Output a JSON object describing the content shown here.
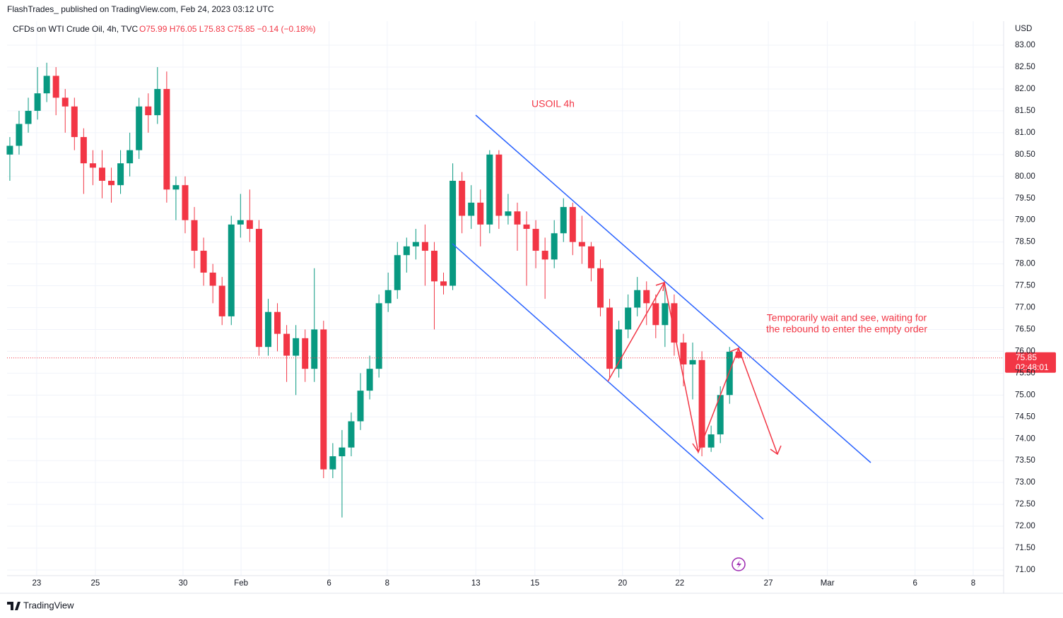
{
  "chart_data": {
    "type": "candlestick",
    "header": "FlashTrades_ published on TradingView.com, Feb 24, 2023 03:12 UTC",
    "symbol": "CFDs on WTI Crude Oil, 4h, TVC",
    "ohlc_legend": "O75.99 H76.05 L75.83 C75.85 −0.14 (−0.18%)",
    "currency": "USD",
    "brand": "TradingView",
    "annotations": [
      "USOIL 4h",
      "Temporarily wait and see, waiting for",
      "the rebound to enter the empty order"
    ],
    "countdown": "02:48:01",
    "up_color": "#089981",
    "down_color": "#f23645",
    "grid": true,
    "last_price_line": true,
    "open": [
      80.5,
      80.7,
      81.2,
      81.5,
      81.9,
      82.3,
      81.8,
      81.6,
      80.9,
      80.3,
      80.2,
      79.9,
      79.8,
      80.3,
      80.6,
      81.6,
      81.4,
      82.0,
      79.7,
      79.8,
      79.0,
      78.3,
      77.8,
      77.5,
      76.8,
      78.9,
      79.0,
      78.8,
      76.1,
      76.9,
      76.4,
      75.9,
      76.3,
      75.6,
      76.5,
      73.3,
      73.6,
      73.8,
      74.4,
      75.1,
      75.6,
      77.1,
      77.4,
      78.2,
      78.4,
      78.5,
      78.3,
      77.6,
      77.5,
      79.9,
      79.1,
      79.4,
      78.9,
      80.5,
      79.1,
      79.2,
      78.9,
      78.8,
      78.3,
      78.1,
      78.7,
      79.3,
      78.5,
      78.4,
      77.9,
      77.0,
      75.6,
      76.5,
      77.0,
      77.4,
      77.1,
      76.6,
      77.1,
      76.2,
      75.7,
      75.8,
      73.8,
      74.1,
      75.0,
      75.99
    ],
    "high": [
      80.9,
      81.5,
      81.8,
      82.5,
      82.6,
      82.5,
      82.0,
      81.8,
      81.1,
      80.6,
      80.6,
      80.2,
      80.6,
      81.0,
      81.8,
      81.9,
      82.5,
      82.4,
      80.0,
      80.0,
      79.3,
      78.6,
      78.0,
      77.7,
      79.1,
      79.6,
      79.7,
      79.0,
      77.2,
      77.1,
      76.6,
      76.6,
      76.5,
      77.9,
      76.7,
      73.9,
      74.2,
      74.6,
      75.5,
      75.9,
      77.3,
      77.8,
      78.5,
      78.6,
      78.8,
      78.9,
      78.5,
      77.8,
      80.3,
      80.1,
      79.8,
      79.7,
      80.6,
      80.6,
      79.6,
      79.4,
      79.2,
      79.0,
      78.6,
      79.0,
      79.5,
      79.4,
      79.1,
      78.5,
      78.1,
      77.2,
      76.7,
      77.3,
      77.7,
      77.6,
      77.3,
      77.5,
      77.3,
      76.4,
      76.2,
      76.0,
      74.3,
      75.2,
      76.1,
      76.05
    ],
    "low": [
      79.9,
      80.5,
      81.0,
      81.3,
      81.7,
      81.4,
      81.0,
      80.6,
      79.6,
      79.8,
      79.5,
      79.4,
      79.6,
      80.0,
      80.4,
      81.0,
      81.2,
      79.4,
      79.0,
      78.7,
      77.9,
      77.5,
      77.1,
      76.6,
      76.6,
      78.6,
      78.5,
      75.9,
      75.9,
      76.0,
      75.3,
      75.0,
      75.3,
      75.3,
      73.1,
      73.1,
      72.2,
      73.6,
      74.2,
      74.9,
      75.4,
      76.9,
      77.2,
      77.8,
      78.1,
      77.5,
      76.5,
      77.3,
      77.4,
      78.7,
      78.8,
      78.4,
      78.7,
      78.8,
      78.9,
      78.3,
      77.5,
      77.9,
      77.2,
      77.9,
      78.5,
      78.2,
      78.0,
      77.6,
      76.8,
      75.4,
      75.4,
      76.3,
      76.8,
      76.6,
      76.3,
      76.1,
      75.9,
      75.2,
      74.9,
      73.6,
      73.7,
      73.9,
      74.8,
      75.83
    ],
    "close": [
      80.7,
      81.2,
      81.5,
      81.9,
      82.3,
      81.8,
      81.6,
      80.9,
      80.3,
      80.2,
      79.9,
      79.8,
      80.3,
      80.6,
      81.6,
      81.4,
      82.0,
      79.7,
      79.8,
      79.0,
      78.3,
      77.8,
      77.5,
      76.8,
      78.9,
      79.0,
      78.8,
      76.1,
      76.9,
      76.4,
      75.9,
      76.3,
      75.6,
      76.5,
      73.3,
      73.6,
      73.8,
      74.4,
      75.1,
      75.6,
      77.1,
      77.4,
      78.2,
      78.4,
      78.5,
      78.3,
      77.6,
      77.5,
      79.9,
      79.1,
      79.4,
      78.9,
      80.5,
      79.1,
      79.2,
      78.9,
      78.8,
      78.3,
      78.1,
      78.7,
      79.3,
      78.5,
      78.4,
      77.9,
      77.0,
      75.6,
      76.5,
      77.0,
      77.4,
      77.1,
      76.6,
      77.1,
      76.2,
      75.7,
      75.8,
      73.8,
      74.1,
      75.0,
      75.99,
      75.85
    ],
    "xlim": [
      -0.3,
      107.7
    ],
    "ylim": [
      70.87,
      83.55
    ],
    "xticks": [
      {
        "value": 2.91,
        "label": "23"
      },
      {
        "value": 9.27,
        "label": "25"
      },
      {
        "value": 18.77,
        "label": "30"
      },
      {
        "value": 25.06,
        "label": "Feb"
      },
      {
        "value": 34.6,
        "label": "6"
      },
      {
        "value": 40.9,
        "label": "8"
      },
      {
        "value": 50.5,
        "label": "13"
      },
      {
        "value": 56.9,
        "label": "15"
      },
      {
        "value": 66.4,
        "label": "20"
      },
      {
        "value": 72.6,
        "label": "22"
      },
      {
        "value": 82.2,
        "label": "27"
      },
      {
        "value": 88.6,
        "label": "Mar"
      },
      {
        "value": 98.1,
        "label": "6"
      },
      {
        "value": 104.4,
        "label": "8"
      }
    ],
    "yticks": [
      {
        "value": 71,
        "label": "71.00"
      },
      {
        "value": 71.5,
        "label": "71.50"
      },
      {
        "value": 72,
        "label": "72.00"
      },
      {
        "value": 72.5,
        "label": "72.50"
      },
      {
        "value": 73,
        "label": "73.00"
      },
      {
        "value": 73.5,
        "label": "73.50"
      },
      {
        "value": 74,
        "label": "74.00"
      },
      {
        "value": 74.5,
        "label": "74.50"
      },
      {
        "value": 75,
        "label": "75.00"
      },
      {
        "value": 75.5,
        "label": "75.50"
      },
      {
        "value": 76,
        "label": "76.00"
      },
      {
        "value": 76.5,
        "label": "76.50"
      },
      {
        "value": 77,
        "label": "77.00"
      },
      {
        "value": 77.5,
        "label": "77.50"
      },
      {
        "value": 78,
        "label": "78.00"
      },
      {
        "value": 78.5,
        "label": "78.50"
      },
      {
        "value": 79,
        "label": "79.00"
      },
      {
        "value": 79.5,
        "label": "79.50"
      },
      {
        "value": 80,
        "label": "80.00"
      },
      {
        "value": 80.5,
        "label": "80.50"
      },
      {
        "value": 81,
        "label": "81.00"
      },
      {
        "value": 81.5,
        "label": "81.50"
      },
      {
        "value": 82,
        "label": "82.00"
      },
      {
        "value": 82.5,
        "label": "82.50"
      },
      {
        "value": 83,
        "label": "83.00"
      }
    ]
  }
}
